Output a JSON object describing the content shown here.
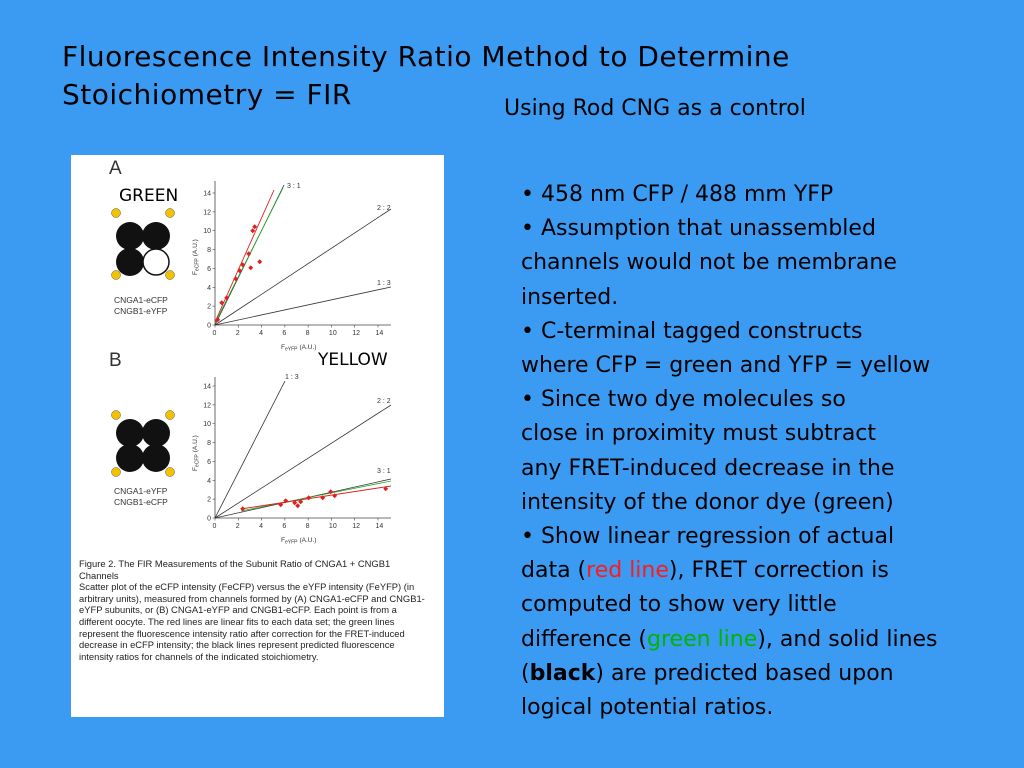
{
  "title": {
    "line1": "Fluorescence Intensity Ratio Method to Determine",
    "line2": "Stoichiometry = FIR"
  },
  "subtitle": "Using Rod CNG as a control",
  "figure": {
    "overlay_green": "GREEN",
    "overlay_yellow": "YELLOW",
    "panel_a": {
      "letter": "A",
      "legend_line1": "CNGA1-eCFP",
      "legend_line2": "CNGB1-eYFP",
      "line_labels": [
        "3 : 1",
        "2 : 2",
        "1 : 3"
      ],
      "y_label": "F",
      "y_label_sub": "eCFP",
      "y_label_unit": "(A.U.)",
      "x_label": "F",
      "x_label_sub": "eYFP",
      "x_label_unit": "(A.U.)"
    },
    "panel_b": {
      "letter": "B",
      "legend_line1": "CNGA1-eYFP",
      "legend_line2": "CNGB1-eCFP",
      "line_labels": [
        "1 : 3",
        "2 : 2",
        "3 : 1"
      ],
      "y_label": "F",
      "y_label_sub": "eCFP",
      "y_label_unit": "(A.U.)",
      "x_label": "F",
      "x_label_sub": "eYFP",
      "x_label_unit": "(A.U.)"
    },
    "ticks": [
      "0",
      "2",
      "4",
      "6",
      "8",
      "10",
      "12",
      "14"
    ],
    "caption_title": "Figure 2.  The FIR Measurements of the Subunit Ratio of CNGA1 + CNGB1 Channels",
    "caption_body": "Scatter plot of the eCFP intensity (FeCFP) versus the eYFP intensity (FeYFP) (in arbitrary units), measured from channels formed by (A) CNGA1-eCFP and CNGB1-eYFP subunits, or (B) CNGA1-eYFP and CNGB1-eCFP. Each point is from a different oocyte. The red lines are linear fits to each data set; the green lines represent the fluorescence intensity ratio after correction for the FRET-induced decrease in eCFP intensity; the black lines represent predicted fluorescence intensity ratios for channels of the indicated stoichiometry."
  },
  "bullets": {
    "b1": "• 458 nm CFP / 488 mm YFP",
    "b2_1": "• Assumption that unassembled",
    "b2_2": "channels would not be membrane",
    "b2_3": "inserted.",
    "b3_1": "• C-terminal tagged constructs",
    "b3_2": "where CFP = green and YFP = yellow",
    "b4_1": "• Since two dye molecules so",
    "b4_2": "close in proximity must subtract",
    "b4_3": "any FRET-induced decrease in the",
    "b4_4": "intensity of the donor dye (green)",
    "b5_1": "• Show linear regression of actual",
    "b5_2a": "data (",
    "b5_2b": "red line",
    "b5_2c": "), FRET correction is",
    "b5_3": "computed to show very little",
    "b5_4a": "difference (",
    "b5_4b": "green line",
    "b5_4c": "), and solid lines",
    "b5_5a": "(",
    "b5_5b": "black",
    "b5_5c": ") are predicted based upon",
    "b5_6": "logical potential ratios."
  },
  "colors": {
    "background": "#3b9bf3",
    "red_text": "#ff1a1a",
    "green_text": "#00b400",
    "fit_red": "#e02020",
    "fret_green": "#22aa22",
    "subunit_yellow": "#f2c200"
  }
}
